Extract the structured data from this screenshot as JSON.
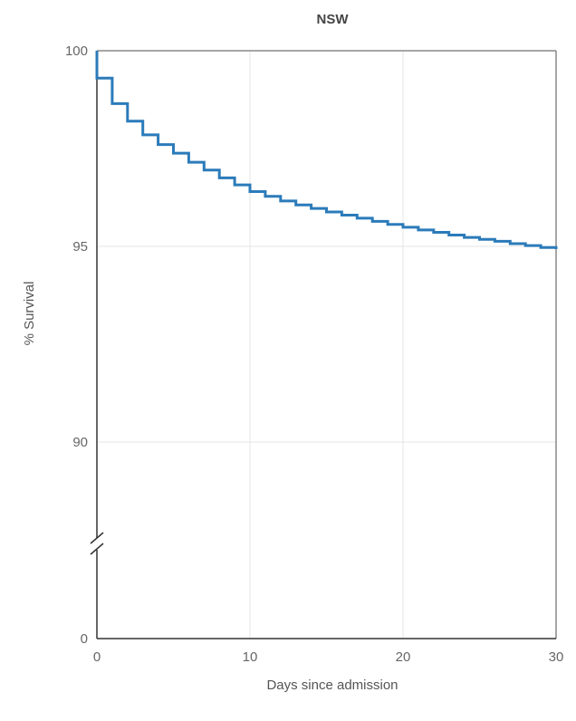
{
  "chart_data": {
    "type": "line",
    "title": "NSW",
    "xlabel": "Days since admission",
    "ylabel": "% Survival",
    "xlim": [
      0,
      30
    ],
    "x_ticks": [
      "0",
      "10",
      "20",
      "30"
    ],
    "y_ticks": [
      "0",
      "90",
      "95",
      "100"
    ],
    "y_axis_break": "between 0 and 90",
    "grid": true,
    "line_color": "#2b7bba",
    "series": [
      {
        "x": [
          0,
          1,
          2,
          3,
          4,
          5,
          6,
          7,
          8,
          9,
          10,
          11,
          12,
          13,
          14,
          15,
          16,
          17,
          18,
          19,
          20,
          21,
          22,
          23,
          24,
          25,
          26,
          27,
          28,
          29,
          30
        ],
        "values": [
          99.3,
          98.65,
          98.2,
          97.85,
          97.6,
          97.38,
          97.15,
          96.95,
          96.75,
          96.57,
          96.4,
          96.28,
          96.16,
          96.06,
          95.97,
          95.88,
          95.8,
          95.72,
          95.64,
          95.56,
          95.49,
          95.42,
          95.36,
          95.29,
          95.23,
          95.18,
          95.13,
          95.07,
          95.02,
          94.97,
          94.93
        ]
      }
    ]
  }
}
